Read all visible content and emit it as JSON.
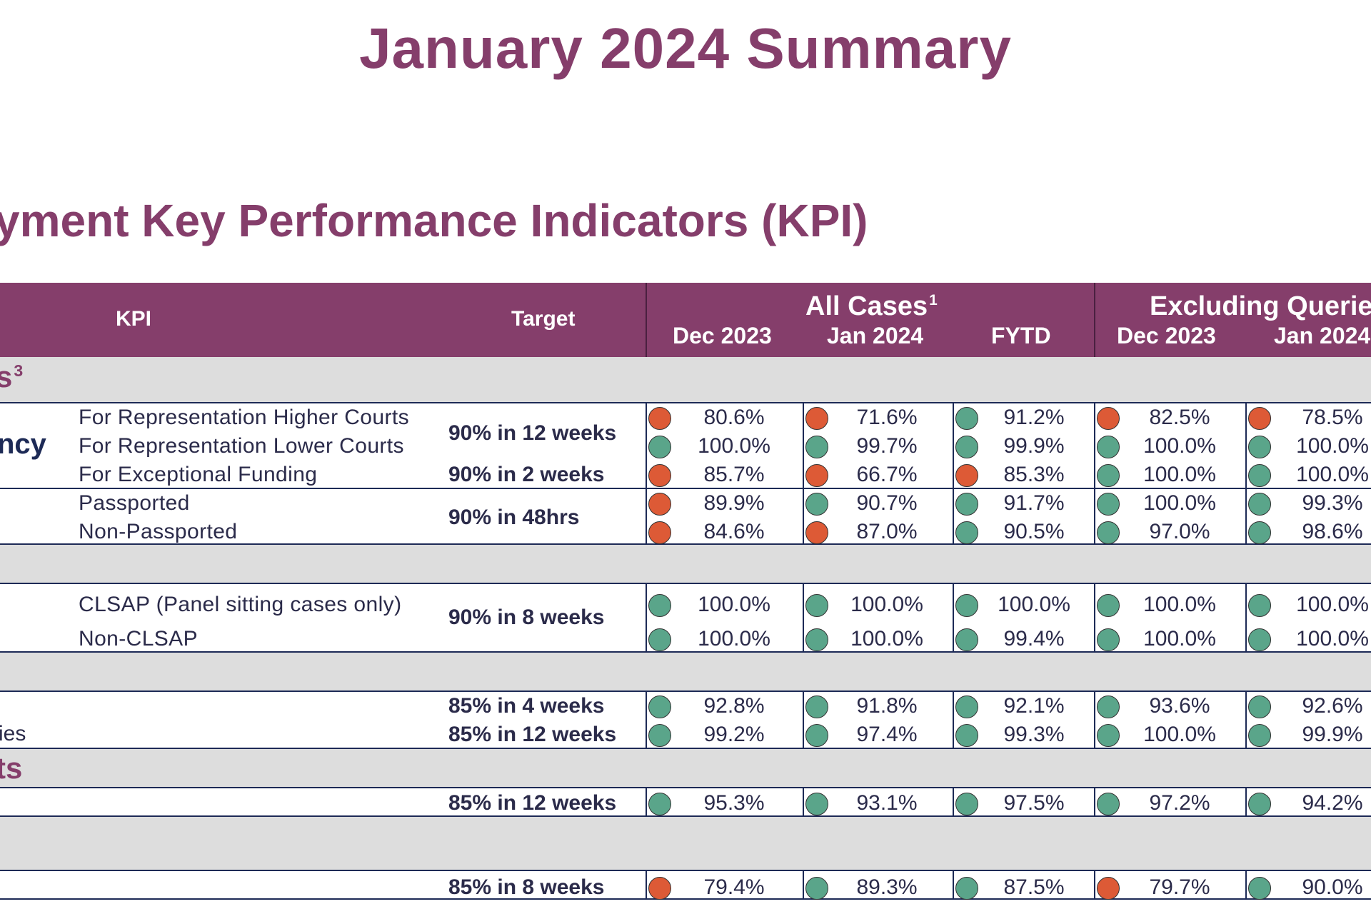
{
  "title": "January 2024 Summary",
  "subtitle": "yment Key Performance Indicators (KPI)",
  "colors": {
    "accent": "#853e6b",
    "red_status": "#dd5a36",
    "green_status": "#5aa58a",
    "band": "#dddddd"
  },
  "header": {
    "kpi": "KPI",
    "target": "Target",
    "group1": "All Cases",
    "group1_sup": "1",
    "group2": "Excluding Queried",
    "columns": [
      "Dec 2023",
      "Jan 2024",
      "FYTD",
      "Dec 2023",
      "Jan 2024"
    ]
  },
  "sections": {
    "s1_label": "s",
    "s1_sup": "3",
    "s1_group": "ncy",
    "s4_label": "ts",
    "row_cut_label": "ies"
  },
  "rows": [
    {
      "kpi": "For Representation Higher Courts",
      "target": "90% in 12 weeks",
      "cells": [
        {
          "s": "red",
          "v": "80.6%"
        },
        {
          "s": "red",
          "v": "71.6%"
        },
        {
          "s": "green",
          "v": "91.2%"
        },
        {
          "s": "red",
          "v": "82.5%"
        },
        {
          "s": "red",
          "v": "78.5%"
        }
      ]
    },
    {
      "kpi": "For Representation Lower Courts",
      "target": "",
      "cells": [
        {
          "s": "green",
          "v": "100.0%"
        },
        {
          "s": "green",
          "v": "99.7%"
        },
        {
          "s": "green",
          "v": "99.9%"
        },
        {
          "s": "green",
          "v": "100.0%"
        },
        {
          "s": "green",
          "v": "100.0%"
        }
      ]
    },
    {
      "kpi": "For Exceptional Funding",
      "target": "90% in 2 weeks",
      "cells": [
        {
          "s": "red",
          "v": "85.7%"
        },
        {
          "s": "red",
          "v": "66.7%"
        },
        {
          "s": "red",
          "v": "85.3%"
        },
        {
          "s": "green",
          "v": "100.0%"
        },
        {
          "s": "green",
          "v": "100.0%"
        }
      ]
    },
    {
      "kpi": "Passported",
      "target": "90% in 48hrs",
      "cells": [
        {
          "s": "red",
          "v": "89.9%"
        },
        {
          "s": "green",
          "v": "90.7%"
        },
        {
          "s": "green",
          "v": "91.7%"
        },
        {
          "s": "green",
          "v": "100.0%"
        },
        {
          "s": "green",
          "v": "99.3%"
        }
      ]
    },
    {
      "kpi": "Non-Passported",
      "target": "",
      "cells": [
        {
          "s": "red",
          "v": "84.6%"
        },
        {
          "s": "red",
          "v": "87.0%"
        },
        {
          "s": "green",
          "v": "90.5%"
        },
        {
          "s": "green",
          "v": "97.0%"
        },
        {
          "s": "green",
          "v": "98.6%"
        }
      ]
    },
    {
      "kpi": "CLSAP (Panel sitting cases only)",
      "target": "90% in 8 weeks",
      "cells": [
        {
          "s": "green",
          "v": "100.0%"
        },
        {
          "s": "green",
          "v": "100.0%"
        },
        {
          "s": "green",
          "v": "100.0%"
        },
        {
          "s": "green",
          "v": "100.0%"
        },
        {
          "s": "green",
          "v": "100.0%"
        }
      ]
    },
    {
      "kpi": "Non-CLSAP",
      "target": "",
      "cells": [
        {
          "s": "green",
          "v": "100.0%"
        },
        {
          "s": "green",
          "v": "100.0%"
        },
        {
          "s": "green",
          "v": "99.4%"
        },
        {
          "s": "green",
          "v": "100.0%"
        },
        {
          "s": "green",
          "v": "100.0%"
        }
      ]
    },
    {
      "kpi": "",
      "target": "85% in 4 weeks",
      "cells": [
        {
          "s": "green",
          "v": "92.8%"
        },
        {
          "s": "green",
          "v": "91.8%"
        },
        {
          "s": "green",
          "v": "92.1%"
        },
        {
          "s": "green",
          "v": "93.6%"
        },
        {
          "s": "green",
          "v": "92.6%"
        }
      ]
    },
    {
      "kpi": "",
      "target": "85% in 12 weeks",
      "cells": [
        {
          "s": "green",
          "v": "99.2%"
        },
        {
          "s": "green",
          "v": "97.4%"
        },
        {
          "s": "green",
          "v": "99.3%"
        },
        {
          "s": "green",
          "v": "100.0%"
        },
        {
          "s": "green",
          "v": "99.9%"
        }
      ]
    },
    {
      "kpi": "",
      "target": "85% in 12 weeks",
      "cells": [
        {
          "s": "green",
          "v": "95.3%"
        },
        {
          "s": "green",
          "v": "93.1%"
        },
        {
          "s": "green",
          "v": "97.5%"
        },
        {
          "s": "green",
          "v": "97.2%"
        },
        {
          "s": "green",
          "v": "94.2%"
        }
      ]
    },
    {
      "kpi": "",
      "target": "85% in 8 weeks",
      "cells": [
        {
          "s": "red",
          "v": "79.4%"
        },
        {
          "s": "green",
          "v": "89.3%"
        },
        {
          "s": "green",
          "v": "87.5%"
        },
        {
          "s": "red",
          "v": "79.7%"
        },
        {
          "s": "green",
          "v": "90.0%"
        }
      ]
    }
  ]
}
